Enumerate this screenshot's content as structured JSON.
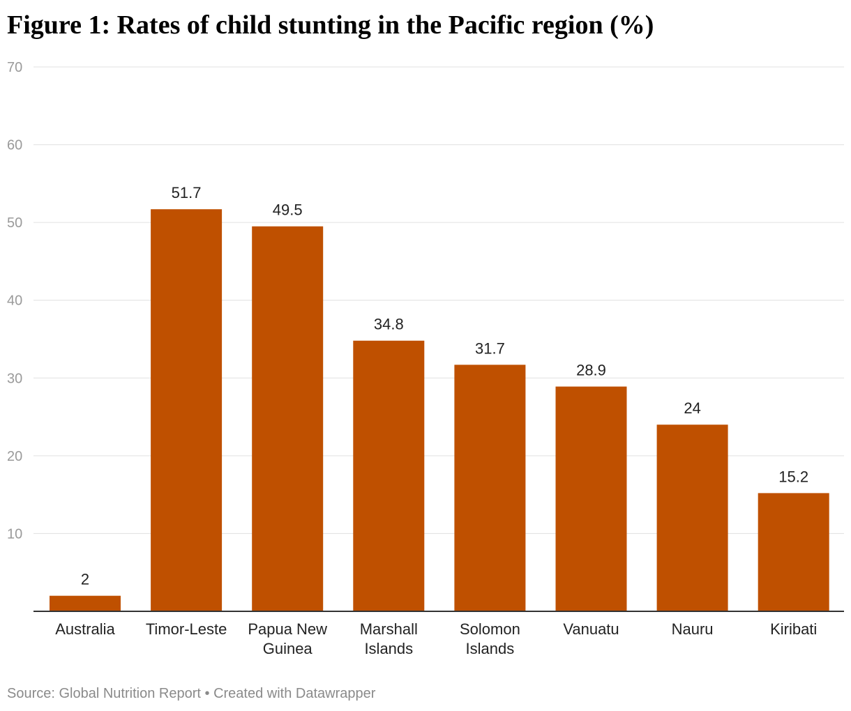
{
  "title": "Figure 1: Rates of child stunting in the Pacific region (%)",
  "footer": {
    "source": "Source: Global Nutrition Report",
    "separator": "•",
    "credit": "Created with Datawrapper"
  },
  "colors": {
    "bar": "#bf5000",
    "grid": "#e0e0e0",
    "axis": "#333333",
    "tick_label": "#9a9a9a",
    "value_label": "#222222",
    "category_label": "#222222"
  },
  "chart_data": {
    "type": "bar",
    "categories": [
      [
        "Australia"
      ],
      [
        "Timor-Leste"
      ],
      [
        "Papua New",
        "Guinea"
      ],
      [
        "Marshall",
        "Islands"
      ],
      [
        "Solomon",
        "Islands"
      ],
      [
        "Vanuatu"
      ],
      [
        "Nauru"
      ],
      [
        "Kiribati"
      ]
    ],
    "values": [
      2,
      51.7,
      49.5,
      34.8,
      31.7,
      28.9,
      24,
      15.2
    ],
    "value_labels": [
      "2",
      "51.7",
      "49.5",
      "34.8",
      "31.7",
      "28.9",
      "24",
      "15.2"
    ],
    "ylim": [
      0,
      70
    ],
    "yticks": [
      10,
      20,
      30,
      40,
      50,
      60,
      70
    ],
    "grid": true,
    "xlabel": "",
    "ylabel": ""
  }
}
